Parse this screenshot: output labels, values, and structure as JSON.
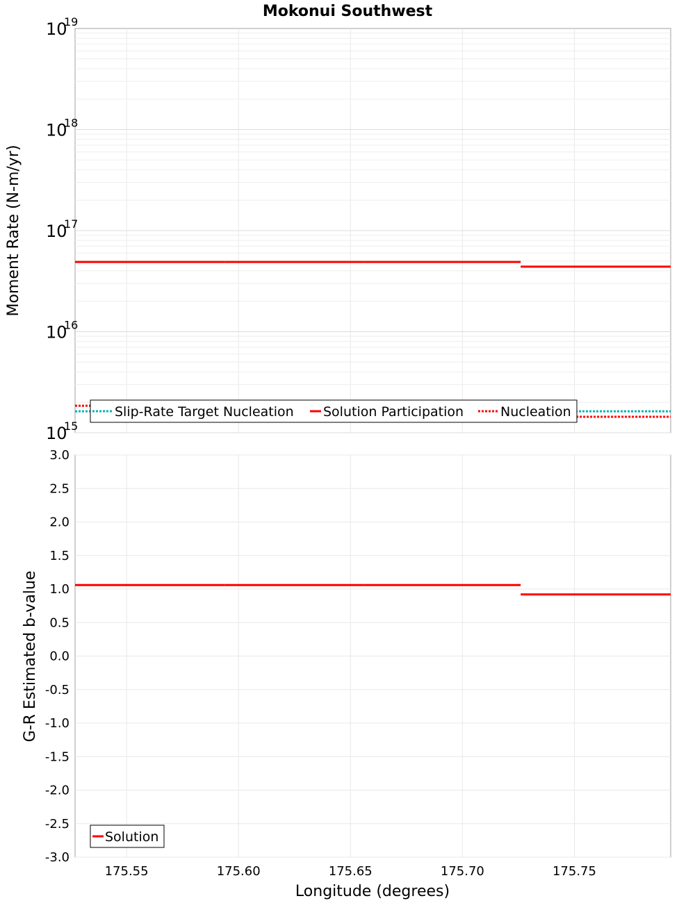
{
  "title": "Mokonui Southwest",
  "chart_data": [
    {
      "type": "line",
      "panel": "top",
      "title": "Mokonui Southwest",
      "xlabel": "Longitude (degrees)",
      "ylabel": "Moment Rate (N-m/yr)",
      "yscale": "log",
      "ylim": [
        1000000000000000.0,
        1e+19
      ],
      "xlim": [
        175.527,
        175.793
      ],
      "y_tick_labels": [
        {
          "base": "10",
          "exp": "15",
          "value": 1000000000000000.0
        },
        {
          "base": "10",
          "exp": "16",
          "value": 1e+16
        },
        {
          "base": "10",
          "exp": "17",
          "value": 1e+17
        },
        {
          "base": "10",
          "exp": "18",
          "value": 1e+18
        },
        {
          "base": "10",
          "exp": "19",
          "value": 1e+19
        }
      ],
      "grid": true,
      "legend_position": "bottom-left inside",
      "series": [
        {
          "name": "Slip-Rate Target Nucleation",
          "style": "dotted",
          "color": "#00b4b4",
          "segments": [
            {
              "x0": 175.527,
              "x1": 175.793,
              "y": 1630000000000000.0
            }
          ]
        },
        {
          "name": "Solution Participation",
          "style": "solid",
          "color": "#ff0000",
          "segments": [
            {
              "x0": 175.527,
              "x1": 175.594,
              "y": 4.9e+16
            },
            {
              "x0": 175.594,
              "x1": 175.656,
              "y": 4.9e+16
            },
            {
              "x0": 175.656,
              "x1": 175.726,
              "y": 4.9e+16
            },
            {
              "x0": 175.726,
              "x1": 175.793,
              "y": 4.4e+16
            }
          ]
        },
        {
          "name": "Nucleation",
          "style": "dotted",
          "color": "#ff0000",
          "segments": [
            {
              "x0": 175.527,
              "x1": 175.726,
              "y": 1850000000000000.0
            },
            {
              "x0": 175.726,
              "x1": 175.793,
              "y": 1440000000000000.0
            }
          ]
        }
      ]
    },
    {
      "type": "line",
      "panel": "bottom",
      "xlabel": "Longitude (degrees)",
      "ylabel": "G-R Estimated b-value",
      "ylim": [
        -3.0,
        3.0
      ],
      "xlim": [
        175.527,
        175.793
      ],
      "y_ticks": [
        "3.0",
        "2.5",
        "2.0",
        "1.5",
        "1.0",
        "0.5",
        "0.0",
        "-0.5",
        "-1.0",
        "-1.5",
        "-2.0",
        "-2.5",
        "-3.0"
      ],
      "x_ticks": [
        "175.55",
        "175.60",
        "175.65",
        "175.70",
        "175.75"
      ],
      "grid": true,
      "legend_position": "bottom-left inside",
      "series": [
        {
          "name": "Solution",
          "style": "solid",
          "color": "#ff0000",
          "segments": [
            {
              "x0": 175.527,
              "x1": 175.594,
              "y": 1.06
            },
            {
              "x0": 175.594,
              "x1": 175.656,
              "y": 1.06
            },
            {
              "x0": 175.656,
              "x1": 175.726,
              "y": 1.06
            },
            {
              "x0": 175.726,
              "x1": 175.793,
              "y": 0.92
            }
          ]
        }
      ]
    }
  ],
  "top": {
    "ylabel": "Moment Rate (N-m/yr)",
    "ticks": [
      {
        "base": "10",
        "exp": "19"
      },
      {
        "base": "10",
        "exp": "18"
      },
      {
        "base": "10",
        "exp": "17"
      },
      {
        "base": "10",
        "exp": "16"
      },
      {
        "base": "10",
        "exp": "15"
      }
    ],
    "legend": [
      "Slip-Rate Target Nucleation",
      "Solution Participation",
      "Nucleation"
    ]
  },
  "bottom": {
    "ylabel": "G-R Estimated b-value",
    "yticks": [
      "3.0",
      "2.5",
      "2.0",
      "1.5",
      "1.0",
      "0.5",
      "0.0",
      "-0.5",
      "-1.0",
      "-1.5",
      "-2.0",
      "-2.5",
      "-3.0"
    ],
    "legend": [
      "Solution"
    ]
  },
  "xaxis": {
    "label": "Longitude (degrees)",
    "ticks": [
      "175.55",
      "175.60",
      "175.65",
      "175.70",
      "175.75"
    ]
  },
  "colors": {
    "red": "#ff0000",
    "cyan": "#00b4b4",
    "grid": "#e8e8e8",
    "frame": "#a0a0a0"
  }
}
